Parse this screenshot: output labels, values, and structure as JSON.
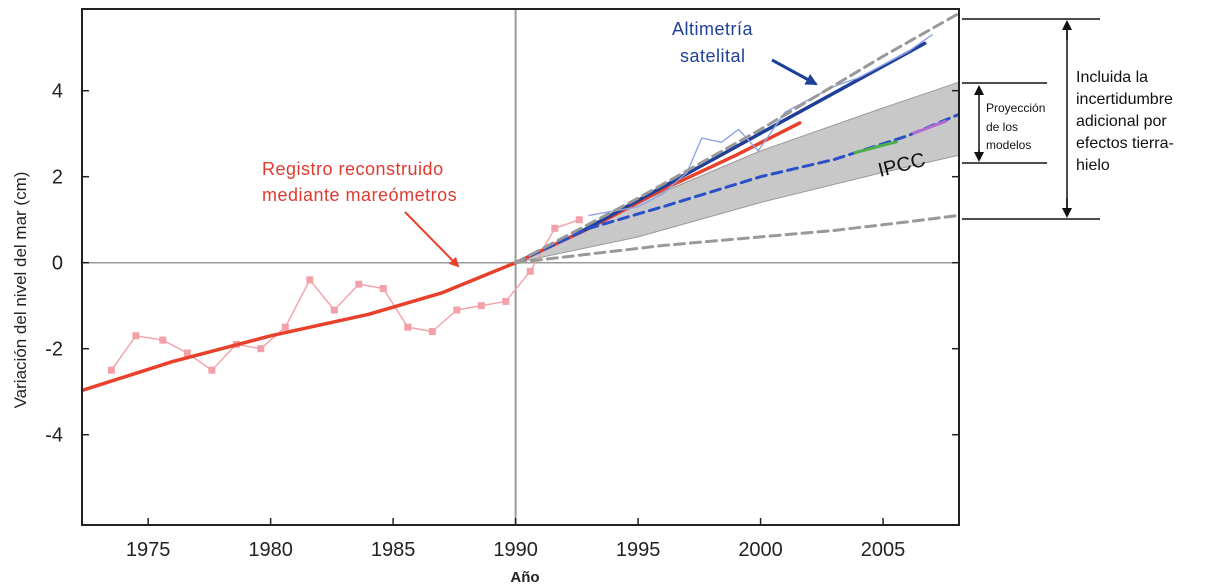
{
  "chart_data": {
    "type": "line",
    "xlabel": "Año",
    "ylabel": "Variación del nivel del mar (cm)",
    "xlim": [
      1972.3,
      2008.1
    ],
    "ylim": [
      -6.1,
      5.9
    ],
    "xticks": [
      1975,
      1980,
      1985,
      1990,
      1995,
      2000,
      2005
    ],
    "yticks": [
      4,
      2,
      0,
      -2,
      -4
    ],
    "ytick_labels": [
      "4",
      "2",
      "0",
      "-2",
      "-4"
    ],
    "reference_lines": {
      "x": 1990,
      "y": 0
    },
    "series": [
      {
        "name": "Registro reconstruido mediante mareómetros",
        "style": "markers",
        "color": "#f4a0a8",
        "x": [
          1973.5,
          1974.5,
          1975.6,
          1976.6,
          1977.6,
          1978.6,
          1979.6,
          1980.6,
          1981.6,
          1982.6,
          1983.6,
          1984.6,
          1985.6,
          1986.6,
          1987.6,
          1988.6,
          1989.6,
          1990.6,
          1991.6,
          1992.6
        ],
        "y": [
          -2.5,
          -1.7,
          -1.8,
          -2.1,
          -2.5,
          -1.9,
          -2.0,
          -1.5,
          -0.4,
          -1.1,
          -0.5,
          -0.6,
          -1.5,
          -1.6,
          -1.1,
          -1.0,
          -0.9,
          -0.2,
          0.8,
          1.0
        ]
      },
      {
        "name": "Registro reconstruido mediante mareómetros (tendencia)",
        "style": "solid",
        "color": "#e8402a",
        "x": [
          1972.3,
          1976,
          1980,
          1984,
          1987,
          1990,
          1993,
          1996,
          1999,
          2001.6
        ],
        "y": [
          -2.97,
          -2.3,
          -1.7,
          -1.2,
          -0.7,
          0.0,
          0.8,
          1.7,
          2.5,
          3.25
        ]
      },
      {
        "name": "Altimetría satelital",
        "style": "solid",
        "color": "#1f3f9a",
        "x": [
          1992.6,
          2006.7
        ],
        "y": [
          0.7,
          5.1
        ]
      },
      {
        "name": "Altimetría satelital (datos)",
        "style": "thin",
        "color": "#8fa3e6",
        "x": [
          1993,
          1994,
          1995,
          1996,
          1997,
          1997.6,
          1998.4,
          1999.1,
          1999.9,
          2001,
          2002,
          2003,
          2004,
          2005,
          2006,
          2007
        ],
        "y": [
          1.1,
          1.2,
          1.3,
          1.6,
          2.1,
          2.9,
          2.8,
          3.1,
          2.6,
          3.5,
          3.8,
          4.1,
          4.3,
          4.6,
          4.9,
          5.3
        ]
      },
      {
        "name": "IPCC",
        "style": "dashed",
        "color": "#2a50c8",
        "x": [
          1990,
          1993,
          1996,
          2000,
          2003,
          2006,
          2008.1
        ],
        "y": [
          0.0,
          0.8,
          1.3,
          2.0,
          2.4,
          2.95,
          3.45
        ]
      },
      {
        "name": "Proyección máxima",
        "style": "dashed",
        "color": "#999999",
        "x": [
          1990,
          1995,
          2000,
          2005,
          2008.1
        ],
        "y": [
          0.0,
          1.5,
          3.1,
          4.8,
          5.8
        ]
      },
      {
        "name": "Proyección mínima",
        "style": "dashed",
        "color": "#999999",
        "x": [
          1990,
          1993,
          1996,
          2000,
          2003,
          2006,
          2008.1
        ],
        "y": [
          0.0,
          0.2,
          0.4,
          0.6,
          0.75,
          0.95,
          1.1
        ]
      }
    ],
    "band": {
      "name": "Proyección de los modelos",
      "color": "#c8c8c8",
      "x": [
        1990,
        1995,
        2000,
        2005,
        2008.1
      ],
      "upper": [
        0.0,
        1.4,
        2.6,
        3.6,
        4.2
      ],
      "lower": [
        0.0,
        0.6,
        1.4,
        2.1,
        2.5
      ]
    },
    "annotations": {
      "tide_gauge": [
        "Registro reconstruido",
        "mediante mareómetros"
      ],
      "satellite": [
        "Altimetría",
        "satelital"
      ],
      "ipcc": "IPCC",
      "models": [
        "Proyección",
        "de los",
        "modelos"
      ],
      "uncertainty": [
        "Incluida la",
        "incertidumbre",
        "adicional por",
        "efectos tierra-",
        "hielo"
      ]
    },
    "grid": false
  }
}
